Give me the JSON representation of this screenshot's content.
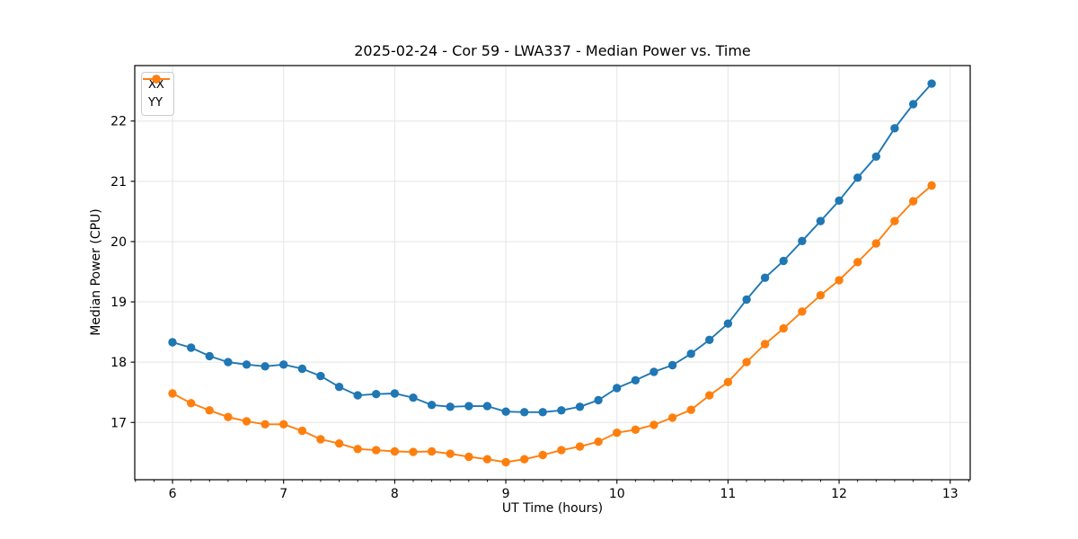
{
  "chart_data": {
    "type": "line",
    "title": "2025-02-24 - Cor 59 - LWA337 - Median Power vs. Time",
    "xlabel": "UT Time (hours)",
    "ylabel": "Median Power (CPU)",
    "xlim": [
      5.66,
      13.18
    ],
    "ylim": [
      16.05,
      22.92
    ],
    "x_major_ticks": [
      6,
      7,
      8,
      9,
      10,
      11,
      12,
      13
    ],
    "x_minor_step_hours": 0.166667,
    "y_major_ticks": [
      17,
      18,
      19,
      20,
      21,
      22
    ],
    "grid": true,
    "grid_color": "#e5e5e5",
    "frame_color": "#000000",
    "legend_position": "upper-left",
    "x": [
      6.0,
      6.167,
      6.333,
      6.5,
      6.667,
      6.833,
      7.0,
      7.167,
      7.333,
      7.5,
      7.667,
      7.833,
      8.0,
      8.167,
      8.333,
      8.5,
      8.667,
      8.833,
      9.0,
      9.167,
      9.333,
      9.5,
      9.667,
      9.833,
      10.0,
      10.167,
      10.333,
      10.5,
      10.667,
      10.833,
      11.0,
      11.167,
      11.333,
      11.5,
      11.667,
      11.833,
      12.0,
      12.167,
      12.333,
      12.5,
      12.667,
      12.833
    ],
    "series": [
      {
        "name": "XX",
        "color": "#1f77b4",
        "marker": "circle",
        "values": [
          18.33,
          18.24,
          18.1,
          18.0,
          17.96,
          17.93,
          17.96,
          17.89,
          17.77,
          17.59,
          17.45,
          17.47,
          17.48,
          17.41,
          17.29,
          17.26,
          17.27,
          17.27,
          17.18,
          17.17,
          17.17,
          17.2,
          17.26,
          17.37,
          17.57,
          17.7,
          17.84,
          17.95,
          18.14,
          18.37,
          18.64,
          19.04,
          19.4,
          19.68,
          20.01,
          20.34,
          20.68,
          21.06,
          21.41,
          21.88,
          22.28,
          22.62
        ]
      },
      {
        "name": "YY",
        "color": "#ff7f0e",
        "marker": "circle",
        "values": [
          17.48,
          17.32,
          17.2,
          17.09,
          17.02,
          16.97,
          16.97,
          16.86,
          16.72,
          16.65,
          16.56,
          16.54,
          16.52,
          16.51,
          16.52,
          16.48,
          16.43,
          16.39,
          16.34,
          16.39,
          16.46,
          16.54,
          16.6,
          16.68,
          16.83,
          16.88,
          16.96,
          17.08,
          17.21,
          17.45,
          17.67,
          18.0,
          18.3,
          18.56,
          18.84,
          19.11,
          19.36,
          19.66,
          19.97,
          20.34,
          20.67,
          20.93
        ]
      }
    ]
  }
}
